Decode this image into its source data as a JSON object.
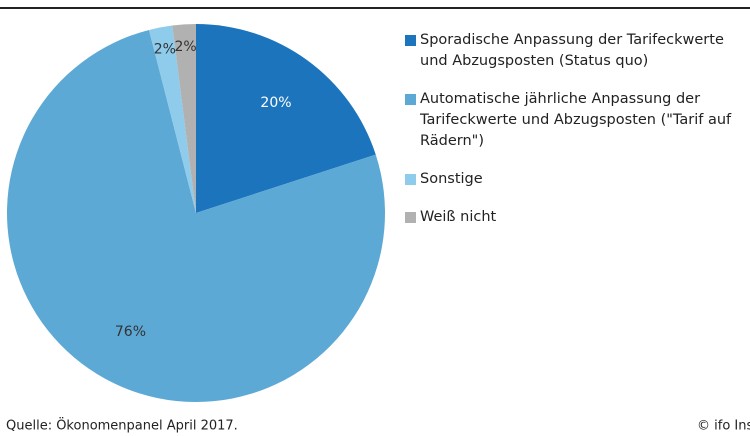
{
  "chart_data": {
    "type": "pie",
    "categories": [
      "Sporadische Anpassung der Tarifeckwerte und Abzugsposten (Status quo)",
      "Automatische jährliche Anpassung der Tarifeckwerte und Abzugsposten (\"Tarif auf Rädern\")",
      "Sonstige",
      "Weiß nicht"
    ],
    "values": [
      20,
      76,
      2,
      2
    ],
    "value_labels": [
      "20%",
      "76%",
      "2%",
      "2%"
    ],
    "colors": [
      "#1c75bc",
      "#5ca9d6",
      "#8fcbea",
      "#b1b1b1"
    ],
    "source": "Quelle: Ökonomenpanel  April 2017.",
    "credit": "© ifo Institut"
  }
}
